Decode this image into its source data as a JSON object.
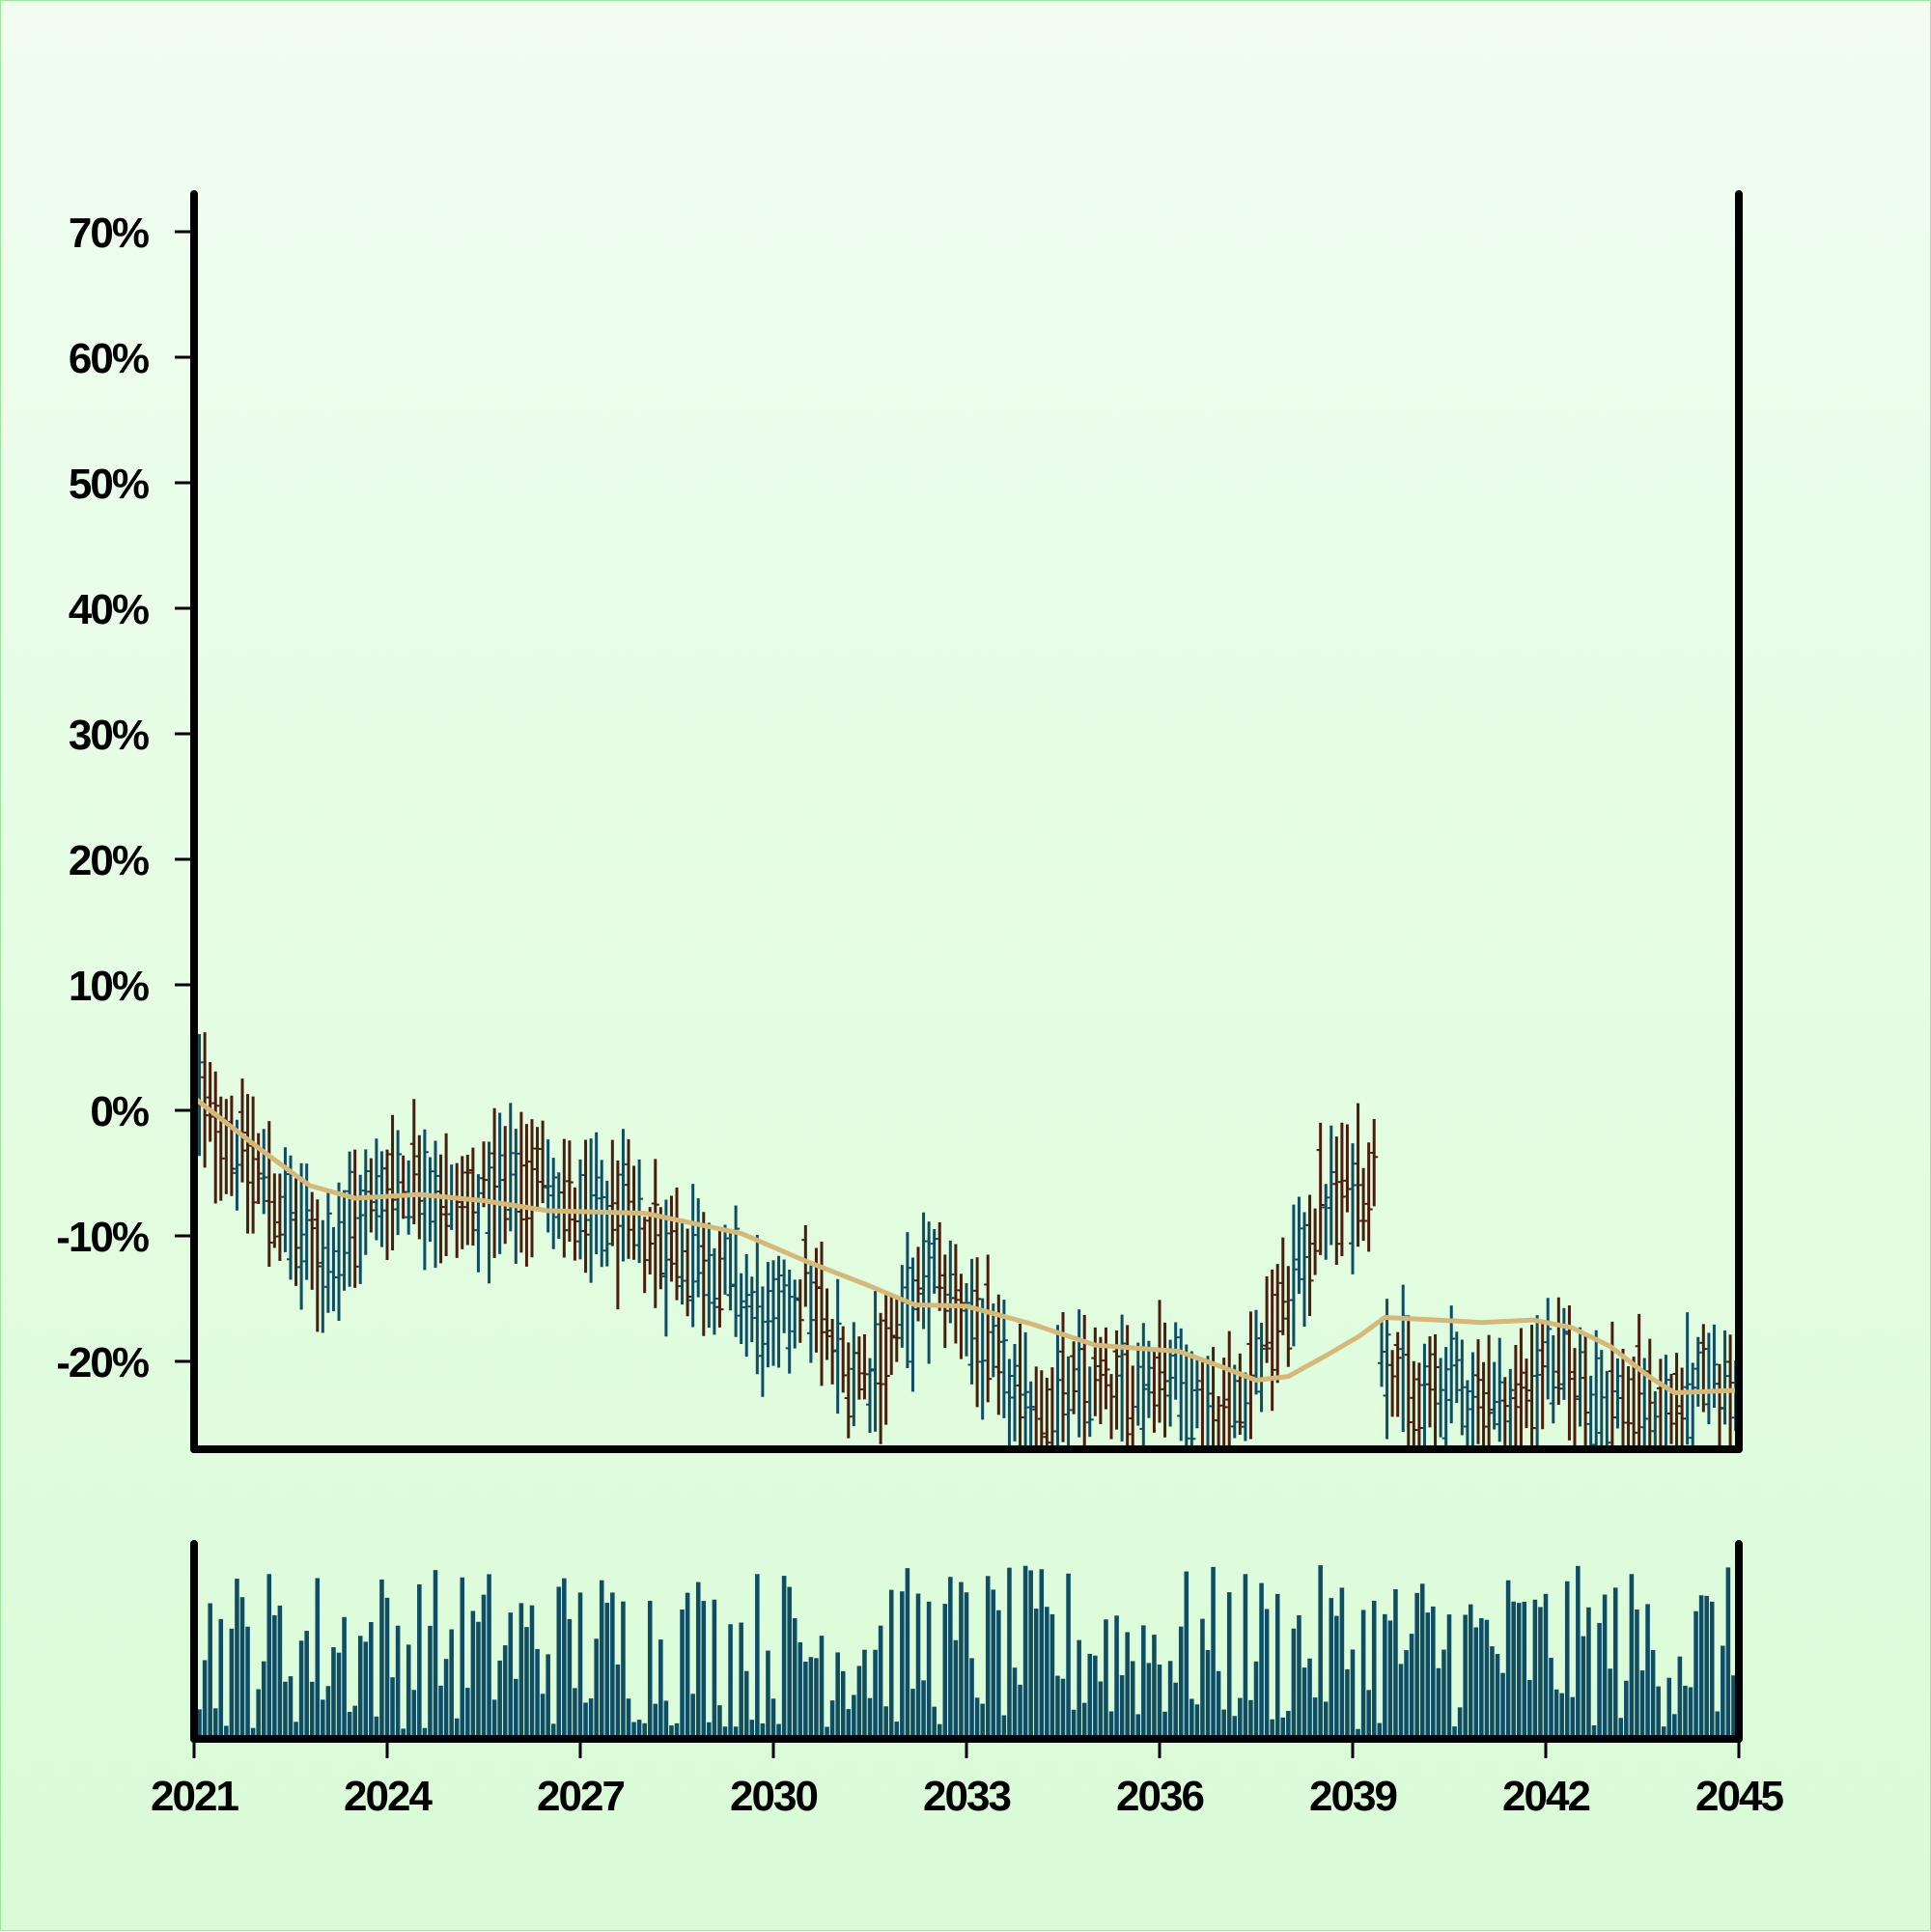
{
  "chart_data": {
    "type": "ohlc",
    "title": "",
    "xlabel": "",
    "ylabel": "",
    "x_range": [
      2021,
      2045
    ],
    "ylim": [
      -27,
      73
    ],
    "yticks": [
      "-20%",
      "-10%",
      "0%",
      "10%",
      "20%",
      "30%",
      "40%",
      "50%",
      "60%",
      "70%"
    ],
    "ytick_values": [
      -20,
      -10,
      0,
      10,
      20,
      30,
      40,
      50,
      60,
      70
    ],
    "xticks": [
      "2021",
      "2024",
      "2027",
      "2030",
      "2033",
      "2036",
      "2039",
      "2042",
      "2045"
    ],
    "xtick_values": [
      2021,
      2024,
      2027,
      2030,
      2033,
      2036,
      2039,
      2042,
      2045
    ],
    "colors": {
      "up": "#0e4d64",
      "down": "#4a1e0e",
      "moving_average": "#d5b97a",
      "volume": "#0e4d64",
      "axis": "#000000"
    },
    "legend": "none",
    "grid": false,
    "panels": [
      "price",
      "volume"
    ],
    "price_series_approx": [
      {
        "t": 2021.0,
        "v": 1
      },
      {
        "t": 2021.5,
        "v": -2
      },
      {
        "t": 2022.0,
        "v": -5
      },
      {
        "t": 2022.5,
        "v": -9
      },
      {
        "t": 2023.0,
        "v": -12
      },
      {
        "t": 2023.5,
        "v": -9
      },
      {
        "t": 2024.0,
        "v": -6
      },
      {
        "t": 2024.5,
        "v": -5
      },
      {
        "t": 2025.0,
        "v": -8
      },
      {
        "t": 2025.5,
        "v": -7
      },
      {
        "t": 2026.0,
        "v": -6
      },
      {
        "t": 2026.5,
        "v": -5
      },
      {
        "t": 2027.0,
        "v": -9
      },
      {
        "t": 2027.5,
        "v": -8
      },
      {
        "t": 2028.0,
        "v": -10
      },
      {
        "t": 2028.5,
        "v": -11
      },
      {
        "t": 2029.0,
        "v": -12
      },
      {
        "t": 2029.5,
        "v": -15
      },
      {
        "t": 2030.0,
        "v": -18
      },
      {
        "t": 2030.5,
        "v": -14
      },
      {
        "t": 2031.0,
        "v": -20
      },
      {
        "t": 2031.5,
        "v": -21
      },
      {
        "t": 2032.0,
        "v": -17
      },
      {
        "t": 2032.5,
        "v": -13
      },
      {
        "t": 2033.0,
        "v": -16
      },
      {
        "t": 2033.5,
        "v": -21
      },
      {
        "t": 2034.0,
        "v": -25
      },
      {
        "t": 2034.5,
        "v": -23
      },
      {
        "t": 2035.0,
        "v": -22
      },
      {
        "t": 2035.5,
        "v": -23
      },
      {
        "t": 2036.0,
        "v": -20
      },
      {
        "t": 2036.5,
        "v": -23
      },
      {
        "t": 2037.0,
        "v": -25
      },
      {
        "t": 2037.5,
        "v": -20
      },
      {
        "t": 2038.0,
        "v": -15
      },
      {
        "t": 2038.5,
        "v": -8
      },
      {
        "t": 2039.0,
        "v": -6
      },
      {
        "t": 2039.4,
        "v": -5
      }
    ],
    "price_series_2_approx": [
      {
        "t": 2039.45,
        "v": -18
      },
      {
        "t": 2040.0,
        "v": -24
      },
      {
        "t": 2040.5,
        "v": -22
      },
      {
        "t": 2041.0,
        "v": -23
      },
      {
        "t": 2041.5,
        "v": -24
      },
      {
        "t": 2042.0,
        "v": -20
      },
      {
        "t": 2042.5,
        "v": -22
      },
      {
        "t": 2043.0,
        "v": -23
      },
      {
        "t": 2043.5,
        "v": -24
      },
      {
        "t": 2044.0,
        "v": -24
      },
      {
        "t": 2044.5,
        "v": -22
      },
      {
        "t": 2045.0,
        "v": -23
      }
    ],
    "moving_average_approx": [
      {
        "t": 2021.0,
        "v": 1
      },
      {
        "t": 2022.0,
        "v": -3
      },
      {
        "t": 2022.8,
        "v": -6
      },
      {
        "t": 2023.5,
        "v": -7
      },
      {
        "t": 2024.5,
        "v": -6.7
      },
      {
        "t": 2025.5,
        "v": -7.2
      },
      {
        "t": 2026.5,
        "v": -8
      },
      {
        "t": 2028.0,
        "v": -8.2
      },
      {
        "t": 2029.5,
        "v": -9.8
      },
      {
        "t": 2030.5,
        "v": -12
      },
      {
        "t": 2031.5,
        "v": -14
      },
      {
        "t": 2032.2,
        "v": -15.5
      },
      {
        "t": 2033.0,
        "v": -15.6
      },
      {
        "t": 2034.0,
        "v": -17
      },
      {
        "t": 2035.0,
        "v": -18.7
      },
      {
        "t": 2036.3,
        "v": -19.2
      },
      {
        "t": 2037.0,
        "v": -20.5
      },
      {
        "t": 2037.5,
        "v": -21.5
      },
      {
        "t": 2038.0,
        "v": -21.2
      },
      {
        "t": 2038.6,
        "v": -19.5
      },
      {
        "t": 2039.1,
        "v": -18
      },
      {
        "t": 2039.5,
        "v": -16.5
      },
      {
        "t": 2040.3,
        "v": -16.7
      },
      {
        "t": 2041.0,
        "v": -16.9
      },
      {
        "t": 2041.8,
        "v": -16.7
      },
      {
        "t": 2042.4,
        "v": -17.3
      },
      {
        "t": 2043.0,
        "v": -18.8
      },
      {
        "t": 2043.6,
        "v": -21.2
      },
      {
        "t": 2044.0,
        "v": -22.5
      },
      {
        "t": 2045.0,
        "v": -22.3
      }
    ]
  }
}
